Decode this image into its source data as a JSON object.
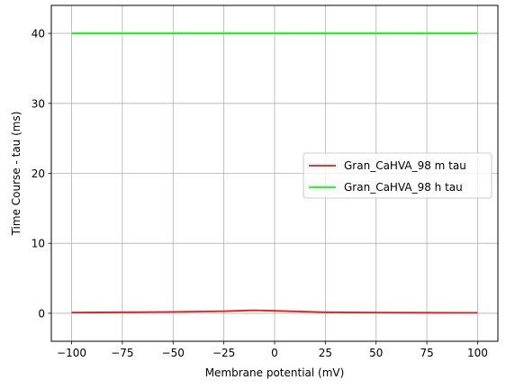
{
  "chart_data": {
    "type": "line",
    "xlabel": "Membrane potential (mV)",
    "ylabel": "Time Course - tau (ms)",
    "xlim": [
      -110,
      110
    ],
    "ylim": [
      -4,
      44
    ],
    "xticks": [
      -100,
      -75,
      -50,
      -25,
      0,
      25,
      50,
      75,
      100
    ],
    "xtick_labels": [
      "−100",
      "−75",
      "−50",
      "−25",
      "0",
      "25",
      "50",
      "75",
      "100"
    ],
    "yticks": [
      0,
      10,
      20,
      30,
      40
    ],
    "ytick_labels": [
      "0",
      "10",
      "20",
      "30",
      "40"
    ],
    "grid": true,
    "legend_position": "center-right",
    "series": [
      {
        "name": "Gran_CaHVA_98 m tau",
        "color": "#e31a1c",
        "x": [
          -100,
          -75,
          -50,
          -25,
          -10,
          0,
          25,
          50,
          75,
          100
        ],
        "y": [
          0.1,
          0.15,
          0.2,
          0.3,
          0.42,
          0.35,
          0.15,
          0.1,
          0.08,
          0.07
        ]
      },
      {
        "name": "Gran_CaHVA_98 h tau",
        "color": "#00ff00",
        "x": [
          -100,
          100
        ],
        "y": [
          40,
          40
        ]
      }
    ]
  }
}
